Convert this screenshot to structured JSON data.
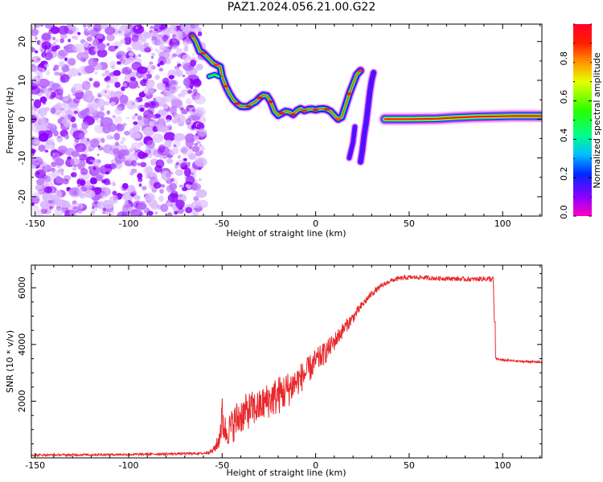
{
  "title": "PAZ1.2024.056.21.00.G22",
  "colors": {
    "snr_line": "#e8282b",
    "background": "#ffffff"
  },
  "chart_data": [
    {
      "type": "heatmap",
      "xlabel": "Height of straight line (km)",
      "ylabel": "Frequency (Hz)",
      "xlim": [
        -152,
        121
      ],
      "ylim": [
        -25,
        24.5
      ],
      "xticks": [
        -150,
        -100,
        -50,
        0,
        50,
        100
      ],
      "yticks": [
        -20,
        -10,
        0,
        10,
        20
      ],
      "colorbar": {
        "label": "Normalized spectral amplitude",
        "range": [
          0,
          1
        ],
        "ticks": [
          0.0,
          0.2,
          0.4,
          0.6,
          0.8
        ],
        "colormap": "gist_rainbow_r"
      },
      "features": [
        {
          "name": "noise",
          "x_range": [
            -152,
            -60
          ],
          "y_range": [
            -25,
            24.5
          ],
          "amplitude": 0.15
        },
        {
          "name": "main_trace",
          "amplitude": 0.85,
          "points": [
            [
              -66,
              21.5
            ],
            [
              -64,
              20
            ],
            [
              -62,
              17.5
            ],
            [
              -60,
              17
            ],
            [
              -57,
              15.5
            ],
            [
              -55,
              14.5
            ],
            [
              -53,
              14
            ],
            [
              -51,
              13.5
            ],
            [
              -50,
              11
            ],
            [
              -48,
              8.5
            ],
            [
              -46,
              6.5
            ],
            [
              -44,
              5
            ],
            [
              -42,
              4
            ],
            [
              -40,
              3.3
            ],
            [
              -38,
              3.2
            ],
            [
              -36,
              3.3
            ],
            [
              -34,
              4
            ],
            [
              -32,
              4.5
            ],
            [
              -30,
              5.5
            ],
            [
              -28,
              6.2
            ],
            [
              -26,
              6
            ],
            [
              -24,
              4.5
            ],
            [
              -22,
              2
            ],
            [
              -20,
              1
            ],
            [
              -18,
              1.5
            ],
            [
              -16,
              2
            ],
            [
              -14,
              1.8
            ],
            [
              -12,
              1.2
            ],
            [
              -10,
              2.2
            ],
            [
              -8,
              2.7
            ],
            [
              -6,
              2.2
            ],
            [
              -4,
              2.5
            ],
            [
              -2,
              2.6
            ],
            [
              0,
              2.4
            ],
            [
              2,
              2.6
            ],
            [
              4,
              2.7
            ],
            [
              6,
              2.5
            ],
            [
              8,
              2
            ],
            [
              10,
              1
            ],
            [
              12,
              0
            ],
            [
              14,
              0.5
            ],
            [
              16,
              3.5
            ],
            [
              18,
              6.5
            ],
            [
              20,
              9
            ],
            [
              22,
              11.5
            ],
            [
              24,
              12.5
            ]
          ]
        },
        {
          "name": "side_trace",
          "amplitude": 0.5,
          "points": [
            [
              -57,
              11
            ],
            [
              -54,
              11.5
            ],
            [
              -52,
              11
            ]
          ]
        },
        {
          "name": "mirror_trace",
          "amplitude": 0.45,
          "points": [
            [
              24,
              -11
            ],
            [
              25,
              -8
            ],
            [
              26,
              -4
            ],
            [
              27,
              -1
            ],
            [
              28,
              3
            ],
            [
              29,
              7
            ],
            [
              30,
              10
            ],
            [
              31,
              12
            ]
          ]
        },
        {
          "name": "mirror_trace_2",
          "amplitude": 0.45,
          "points": [
            [
              18,
              -10
            ],
            [
              20,
              -6
            ],
            [
              21,
              -2
            ]
          ]
        },
        {
          "name": "flat_trace",
          "amplitude": 0.95,
          "points": [
            [
              37,
              0
            ],
            [
              50,
              0
            ],
            [
              65,
              0.1
            ],
            [
              75,
              0.4
            ],
            [
              85,
              0.6
            ],
            [
              95,
              0.7
            ],
            [
              105,
              0.8
            ],
            [
              115,
              0.8
            ],
            [
              121,
              0.8
            ]
          ]
        }
      ]
    },
    {
      "type": "line",
      "xlabel": "Height of straight line (km)",
      "ylabel": "SNR (10 * v/v)",
      "xlim": [
        -152,
        121
      ],
      "ylim": [
        0,
        6800
      ],
      "xticks": [
        -150,
        -100,
        -50,
        0,
        50,
        100
      ],
      "yticks": [
        2000,
        4000,
        6000
      ],
      "series": [
        {
          "x": [
            -152,
            -100,
            -60,
            -55,
            -52,
            -50,
            -48,
            -45,
            -42,
            -40,
            -35,
            -30,
            -25,
            -20,
            -15,
            -10,
            -5,
            0,
            5,
            10,
            15,
            20,
            25,
            30,
            35,
            40,
            45,
            50,
            55,
            60,
            65,
            70,
            75,
            80,
            85,
            90,
            95,
            96,
            100,
            105,
            110,
            121
          ],
          "y": [
            100,
            120,
            160,
            250,
            550,
            1400,
            900,
            1100,
            1350,
            1500,
            1700,
            1800,
            2050,
            2200,
            2400,
            2700,
            3000,
            3400,
            3700,
            4100,
            4550,
            4950,
            5400,
            5800,
            6050,
            6250,
            6330,
            6360,
            6370,
            6350,
            6330,
            6330,
            6320,
            6300,
            6300,
            6320,
            6300,
            3500,
            3450,
            3430,
            3400,
            3380
          ],
          "noise": [
            40,
            40,
            40,
            80,
            300,
            800,
            500,
            600,
            700,
            650,
            650,
            600,
            650,
            700,
            650,
            550,
            500,
            450,
            400,
            320,
            260,
            200,
            150,
            110,
            90,
            80,
            80,
            80,
            80,
            80,
            80,
            80,
            80,
            80,
            80,
            90,
            120,
            40,
            35,
            35,
            35,
            35
          ]
        }
      ]
    }
  ]
}
